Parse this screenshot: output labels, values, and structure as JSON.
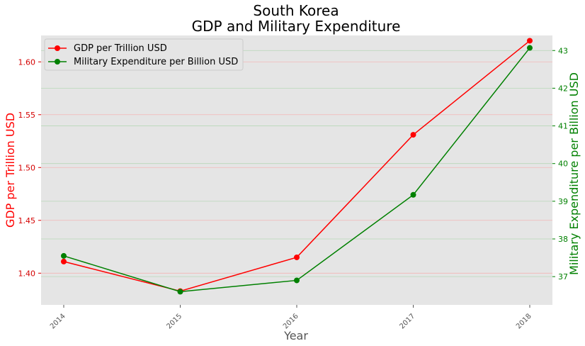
{
  "chart_data": {
    "type": "line",
    "title_line1": "South Korea",
    "title_line2": "GDP and Military Expenditure",
    "xlabel": "Year",
    "x": [
      "2014",
      "2015",
      "2016",
      "2017",
      "2018"
    ],
    "grid": true,
    "legend_position": "top-left",
    "y_left": {
      "label": "GDP per Trillion USD",
      "range": [
        1.37,
        1.625
      ],
      "ticks": [
        "1.40",
        "1.45",
        "1.50",
        "1.55",
        "1.60"
      ],
      "color": "#ff0000"
    },
    "y_right": {
      "label": "Military Expenditure per Billion USD",
      "range": [
        36.25,
        43.4
      ],
      "ticks": [
        "37",
        "38",
        "39",
        "40",
        "41",
        "42",
        "43"
      ],
      "color": "#008000"
    },
    "series": [
      {
        "name": "GDP per Trillion USD",
        "axis": "left",
        "color": "#ff0000",
        "values": [
          1.411,
          1.383,
          1.415,
          1.531,
          1.62
        ]
      },
      {
        "name": "Military Expenditure per Billion USD",
        "axis": "right",
        "color": "#008000",
        "values": [
          37.55,
          36.6,
          36.9,
          39.17,
          43.07
        ]
      }
    ]
  }
}
